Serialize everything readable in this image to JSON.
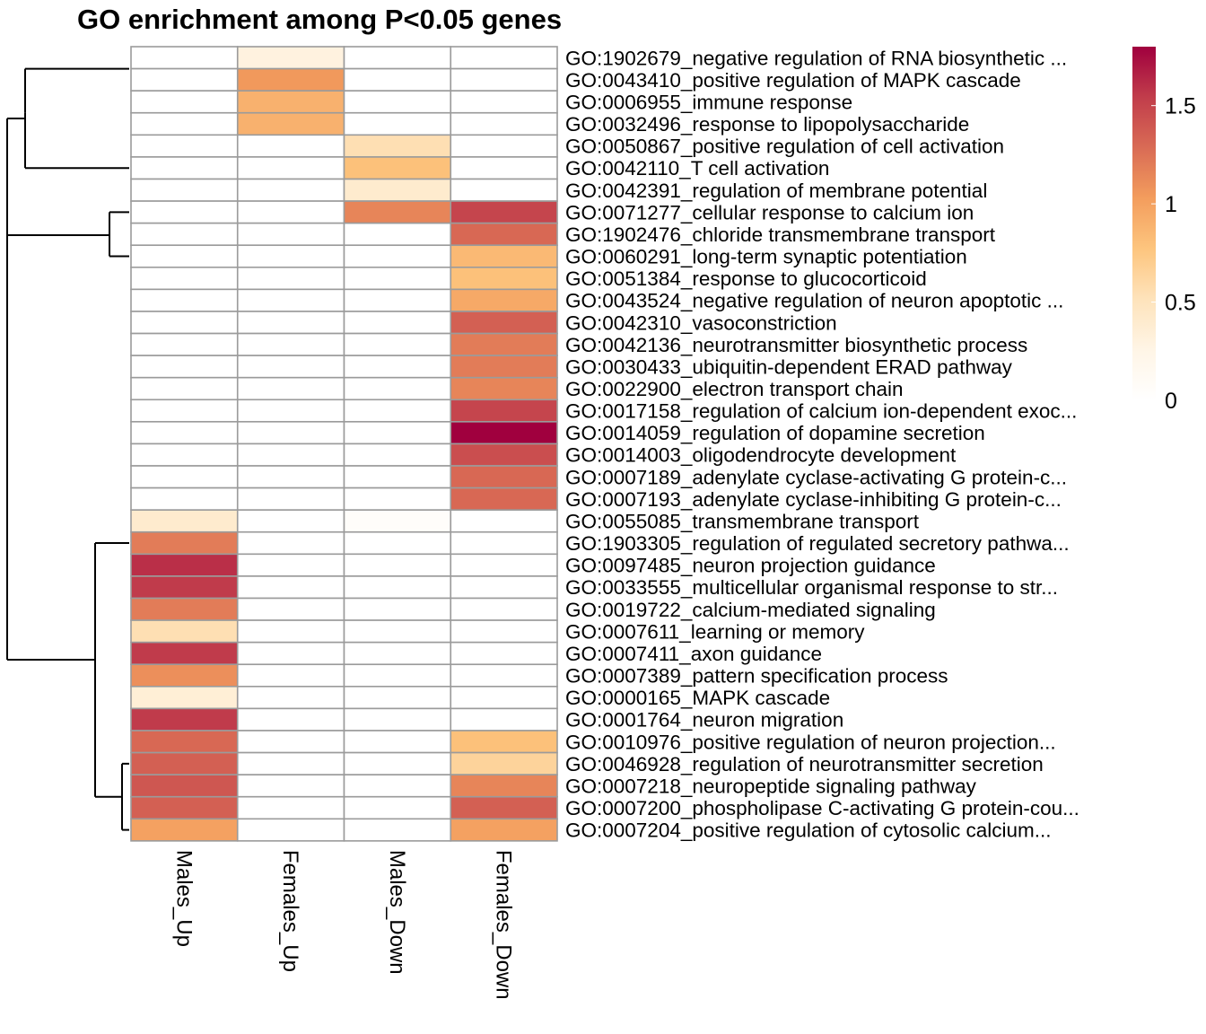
{
  "chart_data": {
    "type": "heatmap",
    "title": "GO enrichment among P<0.05 genes",
    "columns": [
      "Males_Up",
      "Females_Up",
      "Males_Down",
      "Females_Down"
    ],
    "rows": [
      "GO:1902679_negative regulation of RNA biosynthetic ...",
      "GO:0043410_positive regulation of MAPK cascade",
      "GO:0006955_immune response",
      "GO:0032496_response to lipopolysaccharide",
      "GO:0050867_positive regulation of cell activation",
      "GO:0042110_T cell activation",
      "GO:0042391_regulation of membrane potential",
      "GO:0071277_cellular response to calcium ion",
      "GO:1902476_chloride transmembrane transport",
      "GO:0060291_long-term synaptic potentiation",
      "GO:0051384_response to glucocorticoid",
      "GO:0043524_negative regulation of neuron apoptotic ...",
      "GO:0042310_vasoconstriction",
      "GO:0042136_neurotransmitter biosynthetic process",
      "GO:0030433_ubiquitin-dependent ERAD pathway",
      "GO:0022900_electron transport chain",
      "GO:0017158_regulation of calcium ion-dependent exoc...",
      "GO:0014059_regulation of dopamine secretion",
      "GO:0014003_oligodendrocyte development",
      "GO:0007189_adenylate cyclase-activating G protein-c...",
      "GO:0007193_adenylate cyclase-inhibiting G protein-c...",
      "GO:0055085_transmembrane transport",
      "GO:1903305_regulation of regulated secretory pathwa...",
      "GO:0097485_neuron projection guidance",
      "GO:0033555_multicellular organismal response to str...",
      "GO:0019722_calcium-mediated signaling",
      "GO:0007611_learning or memory",
      "GO:0007411_axon guidance",
      "GO:0007389_pattern specification process",
      "GO:0000165_MAPK cascade",
      "GO:0001764_neuron migration",
      "GO:0010976_positive regulation of neuron projection...",
      "GO:0046928_regulation of neurotransmitter secretion",
      "GO:0007218_neuropeptide signaling pathway",
      "GO:0007200_phospholipase C-activating G protein-cou...",
      "GO:0007204_positive regulation of cytosolic calcium..."
    ],
    "values": [
      [
        0,
        0.3,
        0,
        0
      ],
      [
        0,
        1.05,
        0,
        0
      ],
      [
        0,
        0.9,
        0,
        0
      ],
      [
        0,
        0.9,
        0,
        0
      ],
      [
        0,
        0,
        0.55,
        0
      ],
      [
        0,
        0,
        0.8,
        0
      ],
      [
        0,
        0,
        0.4,
        0
      ],
      [
        0,
        0,
        1.15,
        1.5
      ],
      [
        0,
        0,
        0,
        1.3
      ],
      [
        0,
        0,
        0,
        0.85
      ],
      [
        0,
        0,
        0,
        0.8
      ],
      [
        0,
        0,
        0,
        0.95
      ],
      [
        0,
        0,
        0,
        1.35
      ],
      [
        0,
        0,
        0,
        1.2
      ],
      [
        0,
        0,
        0,
        1.2
      ],
      [
        0,
        0,
        0,
        1.15
      ],
      [
        0,
        0,
        0,
        1.5
      ],
      [
        0,
        0,
        0,
        1.8
      ],
      [
        0,
        0,
        0,
        1.45
      ],
      [
        0,
        0,
        0,
        1.3
      ],
      [
        0,
        0,
        0,
        1.3
      ],
      [
        0.4,
        0,
        0.05,
        0
      ],
      [
        1.2,
        0,
        0,
        0
      ],
      [
        1.6,
        0,
        0,
        0
      ],
      [
        1.55,
        0,
        0,
        0
      ],
      [
        1.2,
        0,
        0,
        0
      ],
      [
        0.55,
        0,
        0,
        0
      ],
      [
        1.55,
        0,
        0,
        0
      ],
      [
        1.1,
        0,
        0,
        0
      ],
      [
        0.35,
        0,
        0,
        0
      ],
      [
        1.55,
        0,
        0,
        0
      ],
      [
        1.3,
        0,
        0,
        0.8
      ],
      [
        1.35,
        0,
        0,
        0.65
      ],
      [
        1.4,
        0,
        0,
        1.15
      ],
      [
        1.35,
        0,
        0,
        1.35
      ],
      [
        1.0,
        0,
        0,
        1.0
      ]
    ],
    "color_scale": {
      "min": 0,
      "max": 1.8,
      "ticks": [
        "0",
        "0.5",
        "1",
        "1.5"
      ],
      "tick_values": [
        0,
        0.5,
        1,
        1.5
      ],
      "colors": [
        "#ffffff",
        "#fff5e6",
        "#fee3bb",
        "#fdc57e",
        "#f39d5d",
        "#d96b55",
        "#c13d4b",
        "#a0003e"
      ]
    },
    "cell_border_color": "#9b9b9b",
    "dendrogram_color": "#000000",
    "grid": false,
    "legend_position": "right"
  }
}
